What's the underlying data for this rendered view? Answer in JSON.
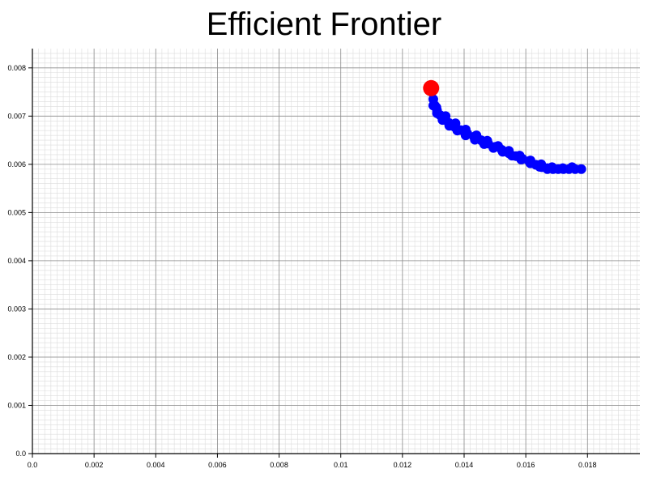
{
  "chart_data": {
    "type": "scatter",
    "title": "Efficient Frontier",
    "xlabel": "",
    "ylabel": "",
    "xlim": [
      0,
      0.0197
    ],
    "ylim": [
      0,
      0.0084
    ],
    "grid": true,
    "x_ticks": [
      "0.0",
      "0.002",
      "0.004",
      "0.006",
      "0.008",
      "0.01",
      "0.012",
      "0.014",
      "0.016",
      "0.018"
    ],
    "x_tick_values": [
      0,
      0.002,
      0.004,
      0.006,
      0.008,
      0.01,
      0.012,
      0.014,
      0.016,
      0.018
    ],
    "y_ticks": [
      "0.0",
      "0.001",
      "0.002",
      "0.003",
      "0.004",
      "0.005",
      "0.006",
      "0.007",
      "0.008"
    ],
    "y_tick_values": [
      0,
      0.001,
      0.002,
      0.003,
      0.004,
      0.005,
      0.006,
      0.007,
      0.008
    ],
    "series": [
      {
        "color": "#0000ff",
        "points": [
          [
            0.01295,
            0.0075
          ],
          [
            0.013,
            0.00735
          ],
          [
            0.01305,
            0.00722
          ],
          [
            0.01312,
            0.00712
          ],
          [
            0.01322,
            0.00702
          ],
          [
            0.01335,
            0.00694
          ],
          [
            0.0135,
            0.00686
          ],
          [
            0.01368,
            0.00678
          ],
          [
            0.01388,
            0.00671
          ],
          [
            0.0141,
            0.00664
          ],
          [
            0.01432,
            0.00657
          ],
          [
            0.01455,
            0.0065
          ],
          [
            0.01478,
            0.00643
          ],
          [
            0.015,
            0.00636
          ],
          [
            0.01522,
            0.0063
          ],
          [
            0.01545,
            0.00623
          ],
          [
            0.01568,
            0.00617
          ],
          [
            0.0159,
            0.00611
          ],
          [
            0.01612,
            0.00605
          ],
          [
            0.01633,
            0.00599
          ],
          [
            0.01652,
            0.00594
          ],
          [
            0.0167,
            0.0059
          ],
          [
            0.01688,
            0.0059
          ],
          [
            0.01705,
            0.0059
          ],
          [
            0.01722,
            0.0059
          ],
          [
            0.0174,
            0.0059
          ],
          [
            0.0176,
            0.0059
          ],
          [
            0.0178,
            0.0059
          ],
          [
            0.013,
            0.00722
          ],
          [
            0.01312,
            0.00706
          ],
          [
            0.0133,
            0.00692
          ],
          [
            0.01352,
            0.0068
          ],
          [
            0.01378,
            0.0067
          ],
          [
            0.01405,
            0.0066
          ],
          [
            0.01435,
            0.00651
          ],
          [
            0.01465,
            0.00642
          ],
          [
            0.01495,
            0.00634
          ],
          [
            0.01525,
            0.00626
          ],
          [
            0.01555,
            0.00618
          ],
          [
            0.01585,
            0.0061
          ],
          [
            0.01615,
            0.00602
          ],
          [
            0.01645,
            0.00595
          ],
          [
            0.0167,
            0.00592
          ],
          [
            0.0131,
            0.00718
          ],
          [
            0.0134,
            0.007
          ],
          [
            0.01372,
            0.00685
          ],
          [
            0.01405,
            0.00672
          ],
          [
            0.0144,
            0.0066
          ],
          [
            0.01475,
            0.00649
          ],
          [
            0.0151,
            0.00638
          ],
          [
            0.01545,
            0.00628
          ],
          [
            0.0158,
            0.00618
          ],
          [
            0.01615,
            0.00608
          ],
          [
            0.0165,
            0.006
          ],
          [
            0.01685,
            0.00594
          ],
          [
            0.0172,
            0.00592
          ],
          [
            0.0175,
            0.00594
          ]
        ]
      },
      {
        "color": "#ff0000",
        "points": [
          [
            0.01293,
            0.00758
          ]
        ]
      }
    ]
  }
}
